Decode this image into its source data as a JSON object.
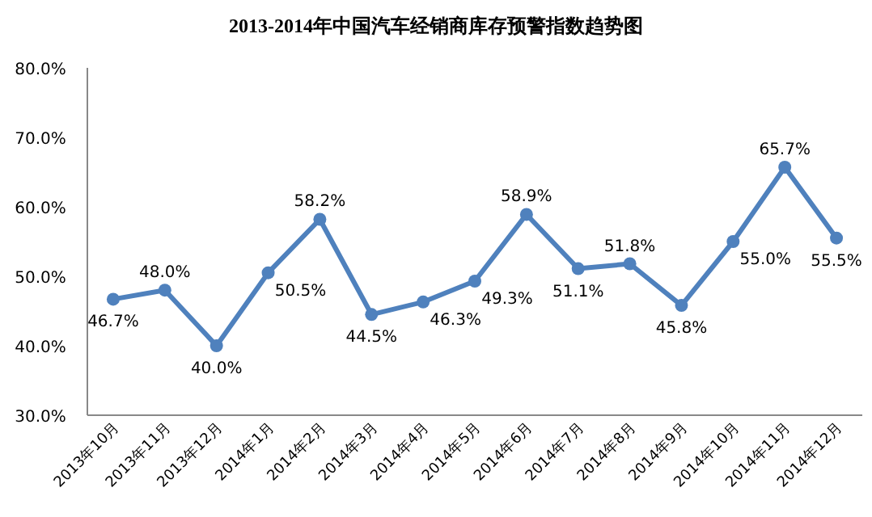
{
  "chart_data": {
    "type": "line",
    "title": "2013-2014年中国汽车经销商库存预警指数趋势图",
    "categories": [
      "2013年10月",
      "2013年11月",
      "2013年12月",
      "2014年1月",
      "2014年2月",
      "2014年3月",
      "2014年4月",
      "2014年5月",
      "2014年6月",
      "2014年7月",
      "2014年8月",
      "2014年9月",
      "2014年10月",
      "2014年11月",
      "2014年12月"
    ],
    "series": [
      {
        "color": "#4f81bd",
        "values": [
          46.7,
          48.0,
          40.0,
          50.5,
          58.2,
          44.5,
          46.3,
          49.3,
          58.9,
          51.1,
          51.8,
          45.8,
          55.0,
          65.7,
          55.5
        ],
        "value_labels": [
          "46.7%",
          "48.0%",
          "40.0%",
          "50.5%",
          "58.2%",
          "44.5%",
          "46.3%",
          "49.3%",
          "58.9%",
          "51.1%",
          "51.8%",
          "45.8%",
          "55.0%",
          "65.7%",
          "55.5%"
        ]
      }
    ],
    "ylim": [
      30,
      80
    ],
    "yticks": [
      {
        "value": 30,
        "label": "30.0%"
      },
      {
        "value": 40,
        "label": "40.0%"
      },
      {
        "value": 50,
        "label": "50.0%"
      },
      {
        "value": 60,
        "label": "60.0%"
      },
      {
        "value": 70,
        "label": "70.0%"
      },
      {
        "value": 80,
        "label": "80.0%"
      }
    ],
    "grid": false,
    "marker": "circle",
    "line_style": "solid"
  }
}
